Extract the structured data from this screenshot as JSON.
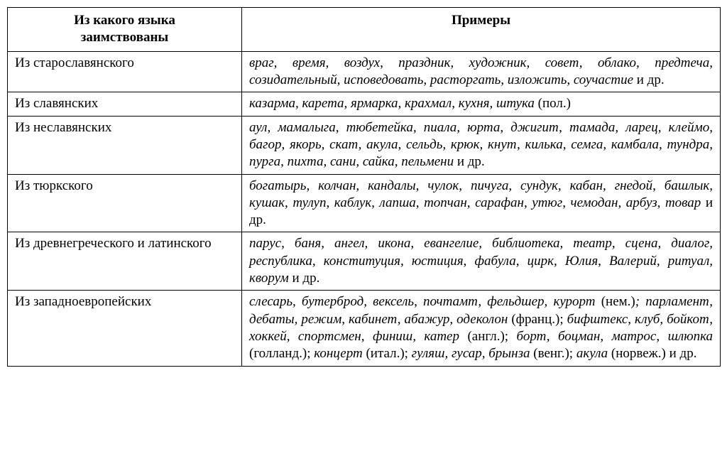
{
  "table": {
    "header": {
      "col1_line1": "Из какого языка",
      "col1_line2": "заимствованы",
      "col2": "Примеры"
    },
    "rows": [
      {
        "label": "Из старославянского",
        "spans": [
          {
            "t": "враг, время, воздух, праздник, художник, совет, облако, предтеча, созидательный, исповедовать, расторгать, изложить, соучастие",
            "i": true
          },
          {
            "t": " и др.",
            "i": false
          }
        ]
      },
      {
        "label": "Из славянских",
        "spans": [
          {
            "t": "казарма, карета, ярмарка, крахмал, кухня, штука",
            "i": true
          },
          {
            "t": " (пол.)",
            "i": false
          }
        ]
      },
      {
        "label": "Из неславянских",
        "spans": [
          {
            "t": "аул, мамалыга, тюбетейка, пиала, юрта, джигит, тамада, ларец, клеймо, багор, якорь, скат, акула, сельдь, крюк, кнут, килька, семга, камбала, тундра, пурга, пихта, сани, сайка, пельмени",
            "i": true
          },
          {
            "t": " и др.",
            "i": false
          }
        ]
      },
      {
        "label": "Из тюркского",
        "spans": [
          {
            "t": "богатырь, колчан, кандалы, чулок, пичуга, сундук, кабан, гнедой, башлык, кушак, тулуп, каблук, лапша, топчан, сарафан, утюг, чемодан, арбуз, товар",
            "i": true
          },
          {
            "t": " и др.",
            "i": false
          }
        ]
      },
      {
        "label": "Из древнегреческого и латинского",
        "spans": [
          {
            "t": "парус, баня, ангел, икона, евангелие, библиотека, театр, сцена, диалог, республика, конституция, юстиция, фабула, цирк, Юлия, Валерий, ритуал, кворум",
            "i": true
          },
          {
            "t": " и др.",
            "i": false
          }
        ]
      },
      {
        "label": "Из западноевропейских",
        "spans": [
          {
            "t": "слесарь, бутерброд, вексель, почтамт, фельдшер, курорт",
            "i": true
          },
          {
            "t": " (нем.)",
            "i": false
          },
          {
            "t": "; парламент, дебаты, режим, кабинет, абажур, одеколон",
            "i": true
          },
          {
            "t": " (франц.); ",
            "i": false
          },
          {
            "t": "бифштекс, клуб, бойкот, хоккей, спортсмен, финиш, катер",
            "i": true
          },
          {
            "t": " (англ.); ",
            "i": false
          },
          {
            "t": "борт, боцман, матрос, шлюпка",
            "i": true
          },
          {
            "t": " (голланд.); ",
            "i": false
          },
          {
            "t": "концерт",
            "i": true
          },
          {
            "t": " (итал.); ",
            "i": false
          },
          {
            "t": "гуляш, гусар, брынза",
            "i": true
          },
          {
            "t": " (венг.); ",
            "i": false
          },
          {
            "t": "акула",
            "i": true
          },
          {
            "t": " (норвеж.) и др.",
            "i": false
          }
        ]
      }
    ]
  }
}
